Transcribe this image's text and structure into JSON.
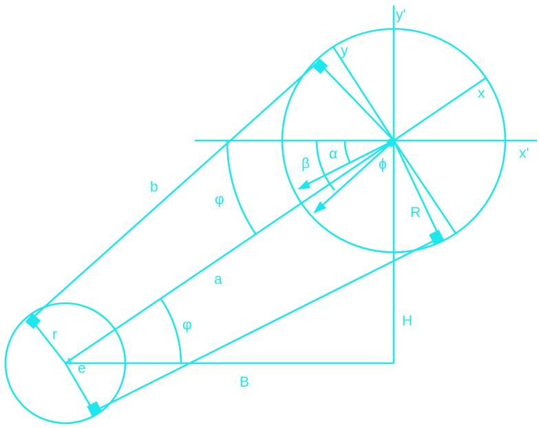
{
  "labels": {
    "y_prime": "y'",
    "y": "y",
    "x": "x",
    "x_prime": "x'",
    "alpha": "α",
    "beta": "β",
    "phi_small": "ϕ",
    "R": "R",
    "b": "b",
    "phi_upper": "φ",
    "a": "a",
    "phi_lower": "φ",
    "H": "H",
    "r": "r",
    "e": "e",
    "B": "B"
  },
  "colors": {
    "stroke": "#1ee6ee",
    "background": "#ffffff"
  }
}
